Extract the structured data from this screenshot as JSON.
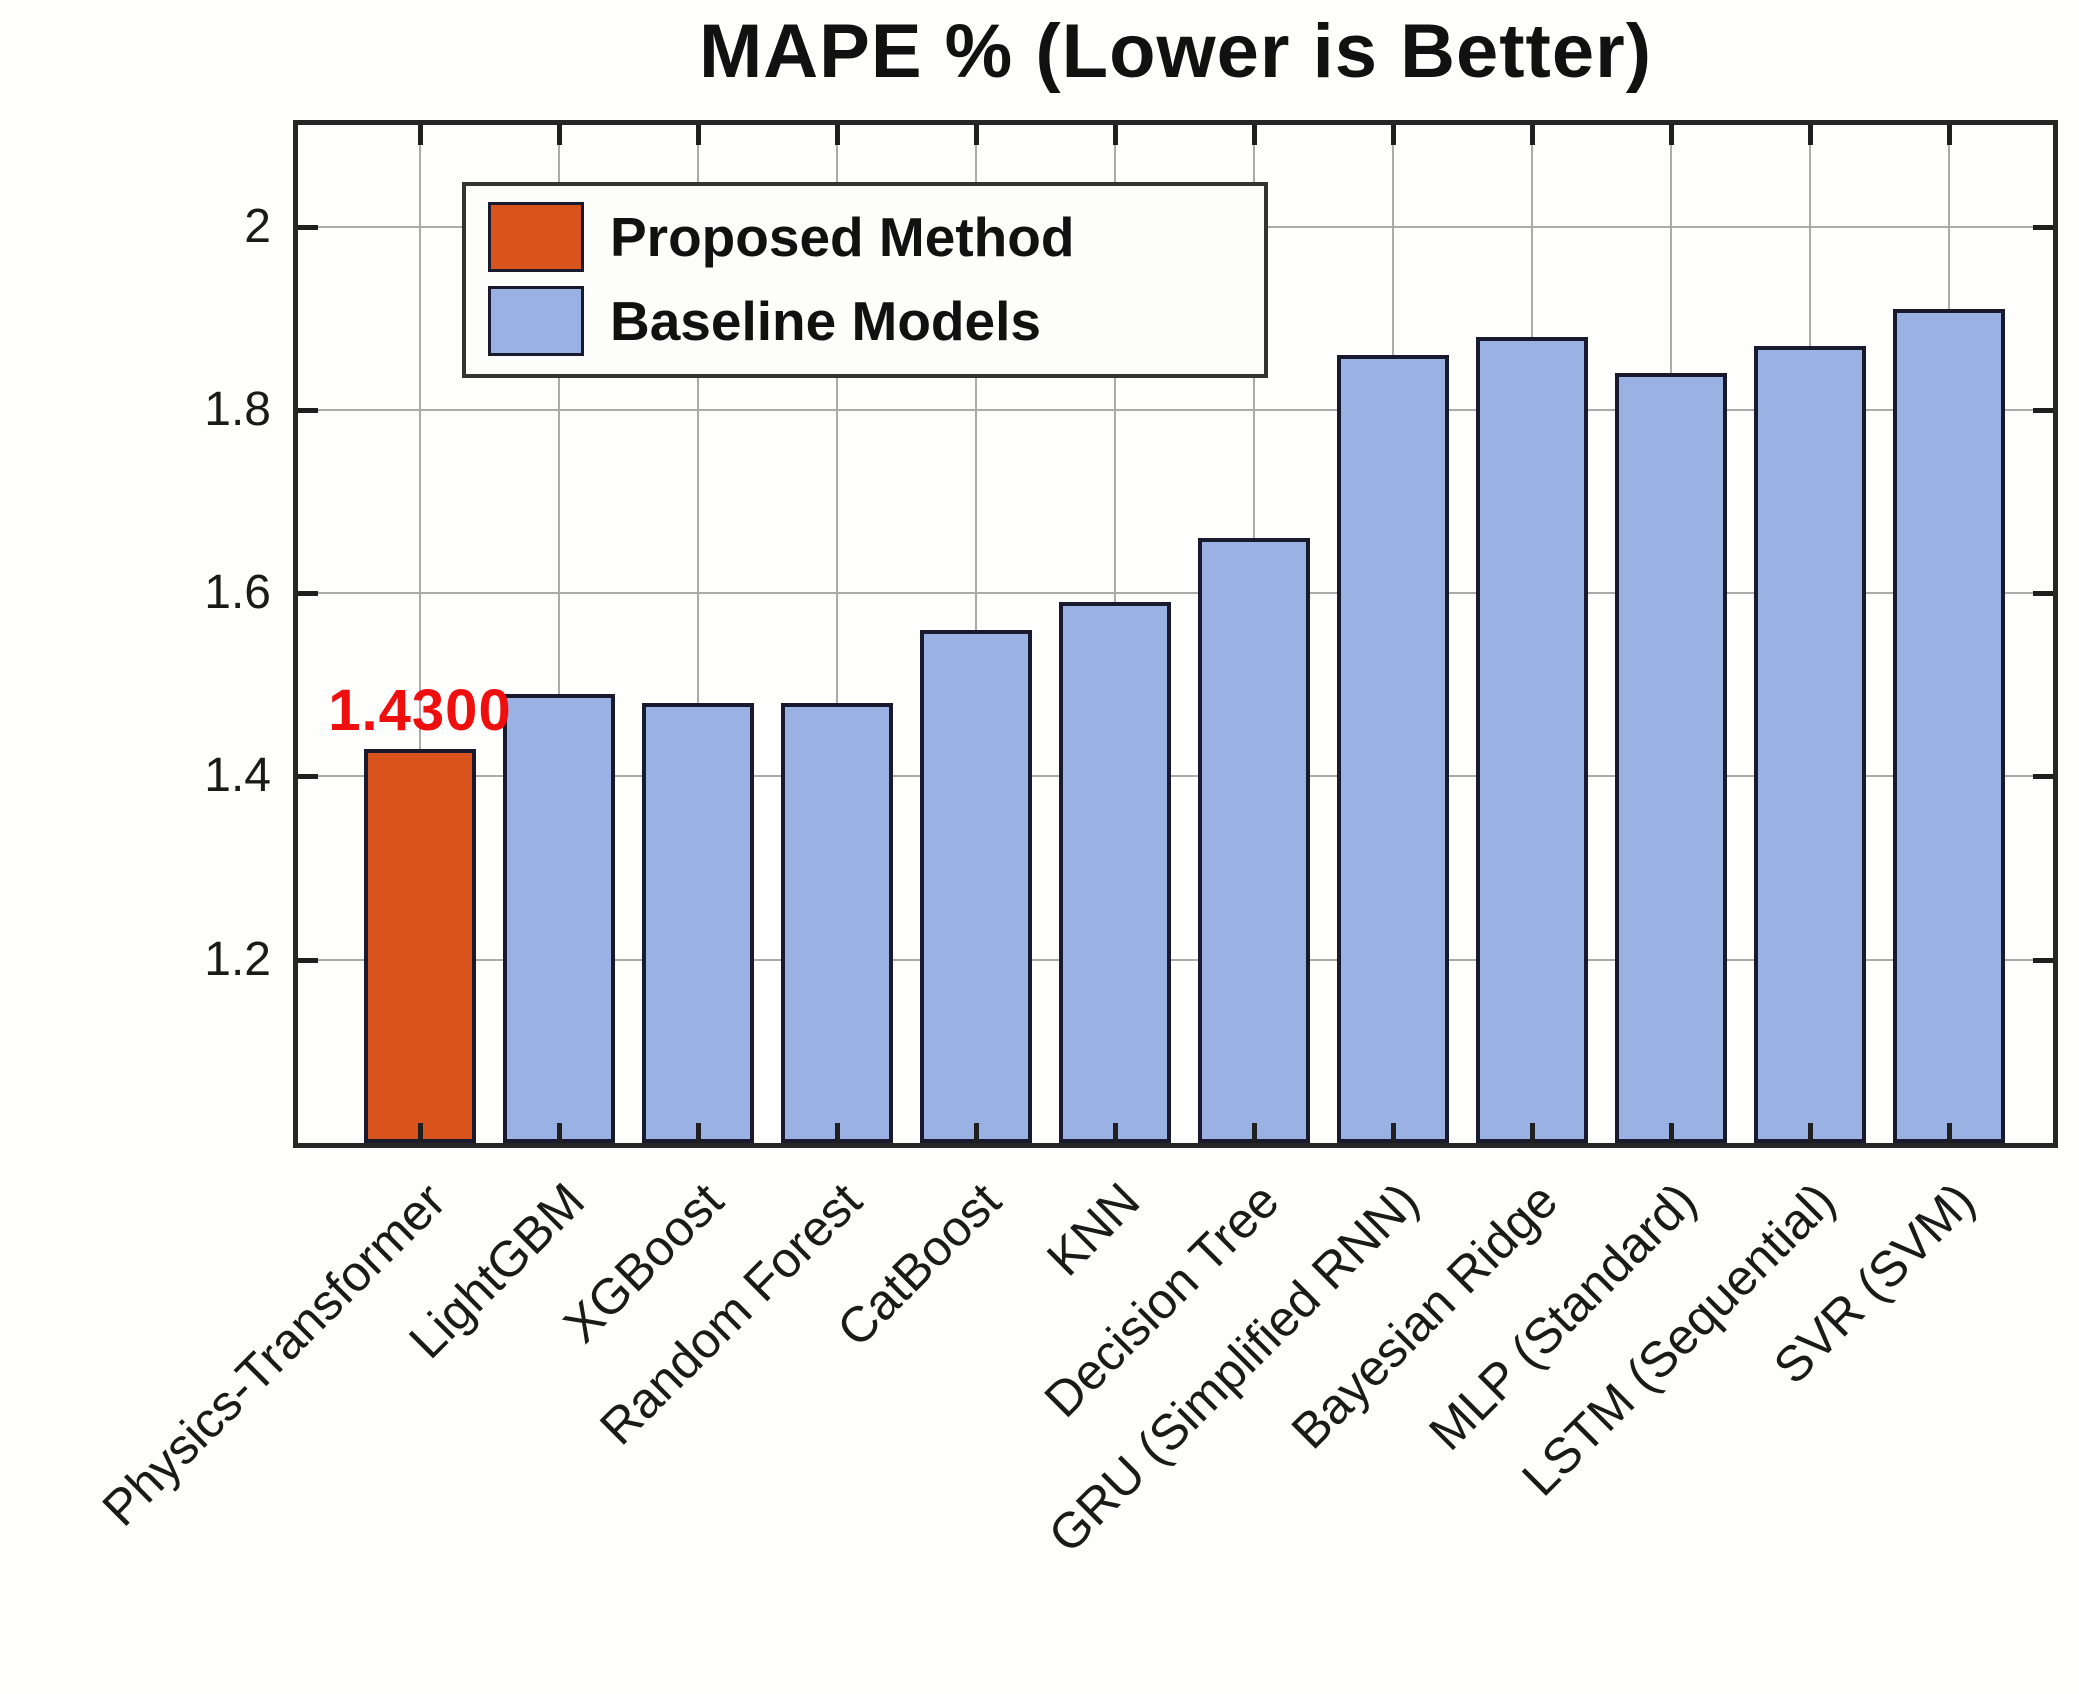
{
  "page": {
    "background": "#ffffff"
  },
  "chart_data": {
    "type": "bar",
    "title": "MAPE % (Lower is Better)",
    "categories": [
      "Physics-Transformer",
      "LightGBM",
      "XGBoost",
      "Random Forest",
      "CatBoost",
      "KNN",
      "Decision Tree",
      "GRU (Simplified RNN)",
      "Bayesian Ridge",
      "MLP (Standard)",
      "LSTM (Sequential)",
      "SVR (SVM)"
    ],
    "values": [
      1.43,
      1.49,
      1.48,
      1.48,
      1.56,
      1.59,
      1.66,
      1.86,
      1.88,
      1.84,
      1.87,
      1.91
    ],
    "proposed_index": 0,
    "annotation": {
      "text": "1.4300",
      "bar_index": 0,
      "color": "#ee0f0f"
    },
    "legend": [
      {
        "label": "Proposed Method",
        "color": "#d9531c",
        "role": "proposed"
      },
      {
        "label": "Baseline Models",
        "color": "#9ab1e4",
        "role": "baseline"
      }
    ],
    "legend_position": "top-left-inside",
    "xlabel": "",
    "ylabel": "",
    "ylim": [
      1.0,
      2.111
    ],
    "yticks": [
      1.2,
      1.4,
      1.6,
      1.8,
      2
    ],
    "ytick_labels": [
      "1.2",
      "1.4",
      "1.6",
      "1.8",
      "2"
    ],
    "grid": true,
    "bar_edge_color": "#1a1a2e",
    "axis_color": "#262626",
    "grid_color": "#ababab",
    "text_color": "#1a1a1a"
  }
}
